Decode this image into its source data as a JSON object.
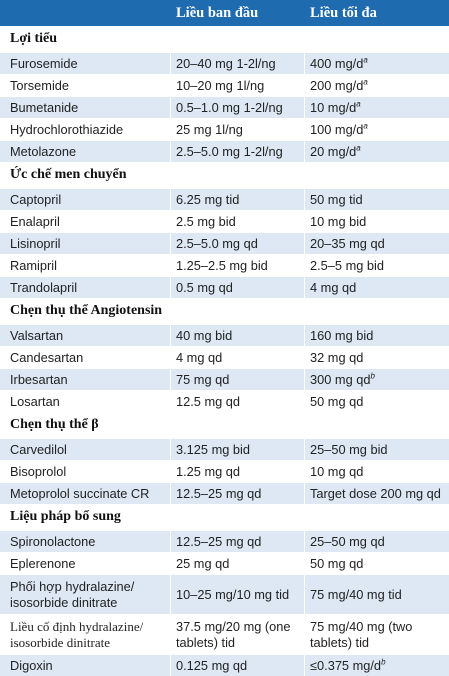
{
  "header": {
    "col1": "",
    "col2": "Liều ban đầu",
    "col3": "Liều tối đa"
  },
  "sections": [
    {
      "title": "Lợi tiểu",
      "rows": [
        {
          "drug": "Furosemide",
          "start": "20–40 mg 1-2l/ng",
          "max": "400 mg/d",
          "sup": "a"
        },
        {
          "drug": "Torsemide",
          "start": "10–20 mg 1l/ng",
          "max": "200 mg/d",
          "sup": "a"
        },
        {
          "drug": "Bumetanide",
          "start": "0.5–1.0 mg 1-2l/ng",
          "max": "10 mg/d",
          "sup": "a"
        },
        {
          "drug": "Hydrochlorothiazide",
          "start": "25 mg 1l/ng",
          "max": "100 mg/d",
          "sup": "a"
        },
        {
          "drug": "Metolazone",
          "start": "2.5–5.0 mg 1-2l/ng",
          "max": "20 mg/d",
          "sup": "a"
        }
      ]
    },
    {
      "title": "Ức chế men chuyển",
      "rows": [
        {
          "drug": "Captopril",
          "start": "6.25 mg tid",
          "max": "50 mg tid",
          "sup": ""
        },
        {
          "drug": "Enalapril",
          "start": "2.5 mg bid",
          "max": "10 mg bid",
          "sup": ""
        },
        {
          "drug": "Lisinopril",
          "start": "2.5–5.0 mg qd",
          "max": "20–35 mg qd",
          "sup": ""
        },
        {
          "drug": "Ramipril",
          "start": "1.25–2.5 mg bid",
          "max": "2.5–5 mg bid",
          "sup": ""
        },
        {
          "drug": "Trandolapril",
          "start": "0.5 mg qd",
          "max": "4 mg qd",
          "sup": ""
        }
      ]
    },
    {
      "title": "Chẹn thụ thể Angiotensin",
      "rows": [
        {
          "drug": "Valsartan",
          "start": "40 mg bid",
          "max": "160 mg bid",
          "sup": ""
        },
        {
          "drug": "Candesartan",
          "start": "4 mg qd",
          "max": "32 mg qd",
          "sup": ""
        },
        {
          "drug": "Irbesartan",
          "start": "75 mg qd",
          "max": "300 mg qd",
          "sup": "b"
        },
        {
          "drug": "Losartan",
          "start": "12.5 mg qd",
          "max": "50 mg qd",
          "sup": ""
        }
      ]
    },
    {
      "title": "Chẹn thụ thể β",
      "rows": [
        {
          "drug": "Carvedilol",
          "start": "3.125 mg bid",
          "max": "25–50 mg bid",
          "sup": ""
        },
        {
          "drug": "Bisoprolol",
          "start": "1.25 mg qd",
          "max": "10 mg qd",
          "sup": ""
        },
        {
          "drug": "Metoprolol succinate CR",
          "start": "12.5–25 mg qd",
          "max": "Target dose 200 mg qd",
          "sup": ""
        }
      ]
    },
    {
      "title": "Liệu pháp bổ sung",
      "rows": [
        {
          "drug": "Spironolactone",
          "start": "12.5–25 mg qd",
          "max": "25–50 mg qd",
          "sup": ""
        },
        {
          "drug": "Eplerenone",
          "start": "25 mg qd",
          "max": "50 mg qd",
          "sup": ""
        },
        {
          "drug": "Phối hợp hydralazine/ isosorbide dinitrate",
          "start": "10–25 mg/10 mg tid",
          "max": "75 mg/40 mg tid",
          "sup": "",
          "tall": true
        },
        {
          "drug": "Liều cố định hydralazine/ isosorbide dinitrate",
          "start": "37.5 mg/20 mg (one tablets) tid",
          "max": "75 mg/40 mg (two tablets) tid",
          "sup": "",
          "tall": true,
          "serif": true
        },
        {
          "drug": "Digoxin",
          "start": "0.125 mg qd",
          "max": "≤0.375 mg/d",
          "sup": "b"
        }
      ]
    }
  ]
}
